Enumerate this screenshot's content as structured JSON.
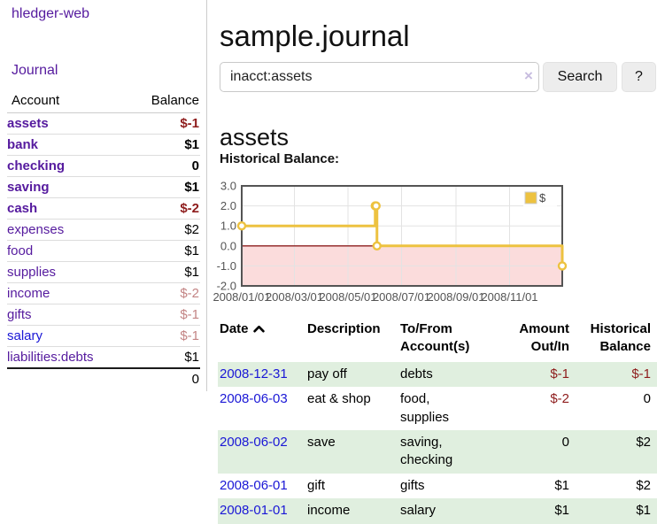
{
  "app": {
    "brand": "hledger-web",
    "nav_journal": "Journal"
  },
  "sidebar": {
    "accounts_header": {
      "account": "Account",
      "balance": "Balance"
    },
    "accounts": [
      {
        "name": "assets",
        "depth": 1,
        "balance": "$-1",
        "bold": true,
        "unvisited": false
      },
      {
        "name": "bank",
        "depth": 2,
        "balance": "$1",
        "bold": true,
        "unvisited": false
      },
      {
        "name": "checking",
        "depth": 3,
        "balance": "0",
        "bold": true,
        "unvisited": false
      },
      {
        "name": "saving",
        "depth": 3,
        "balance": "$1",
        "bold": true,
        "unvisited": false
      },
      {
        "name": "cash",
        "depth": 2,
        "balance": "$-2",
        "bold": true,
        "unvisited": false
      },
      {
        "name": "expenses",
        "depth": 1,
        "balance": "$2",
        "bold": false,
        "unvisited": false
      },
      {
        "name": "food",
        "depth": 2,
        "balance": "$1",
        "bold": false,
        "unvisited": false
      },
      {
        "name": "supplies",
        "depth": 2,
        "balance": "$1",
        "bold": false,
        "unvisited": false
      },
      {
        "name": "income",
        "depth": 1,
        "balance": "$-2",
        "bold": false,
        "unvisited": false
      },
      {
        "name": "gifts",
        "depth": 2,
        "balance": "$-1",
        "bold": false,
        "unvisited": false
      },
      {
        "name": "salary",
        "depth": 2,
        "balance": "$-1",
        "bold": false,
        "unvisited": true
      },
      {
        "name": "liabilities:debts",
        "depth": 1,
        "balance": "$1",
        "bold": false,
        "unvisited": false
      }
    ],
    "total": "0"
  },
  "header": {
    "title": "sample.journal"
  },
  "search": {
    "value": "inacct:assets",
    "clear_icon": "×",
    "button": "Search",
    "help": "?"
  },
  "account_page": {
    "title": "assets",
    "chart_label": "Historical Balance:"
  },
  "chart_data": {
    "type": "line",
    "title": "Historical Balance:",
    "series": [
      {
        "name": "$",
        "color": "#edc240",
        "step": true,
        "points": [
          {
            "date": "2008-01-01",
            "value": 1
          },
          {
            "date": "2008-06-01",
            "value": 2
          },
          {
            "date": "2008-06-02",
            "value": 2
          },
          {
            "date": "2008-06-03",
            "value": 0
          },
          {
            "date": "2008-12-31",
            "value": -1
          }
        ]
      }
    ],
    "x_range": [
      "2008-01-01",
      "2008-12-31"
    ],
    "y_range": [
      -2,
      3
    ],
    "y_ticks": [
      {
        "v": 3,
        "label": "3.0"
      },
      {
        "v": 2,
        "label": "2.0"
      },
      {
        "v": 1,
        "label": "1.0"
      },
      {
        "v": 0,
        "label": "0.0"
      },
      {
        "v": -1,
        "label": "-1.0"
      },
      {
        "v": -2,
        "label": "-2.0"
      }
    ],
    "x_ticks": [
      {
        "date": "2008-01-01",
        "label": "2008/01/01"
      },
      {
        "date": "2008-03-01",
        "label": "2008/03/01"
      },
      {
        "date": "2008-05-01",
        "label": "2008/05/01"
      },
      {
        "date": "2008-07-01",
        "label": "2008/07/01"
      },
      {
        "date": "2008-09-01",
        "label": "2008/09/01"
      },
      {
        "date": "2008-11-01",
        "label": "2008/11/01"
      }
    ],
    "grid": true,
    "legend_position": "top-right",
    "negative_region_color": "#fbdcdc",
    "zero_line_color": "#8e2020",
    "grid_color": "#e3e3e3",
    "border_color": "#545454",
    "tick_label_color": "#545454"
  },
  "register": {
    "columns": [
      {
        "label": "Date",
        "sortable": true
      },
      {
        "label": "Description"
      },
      {
        "label": "To/From Account(s)"
      },
      {
        "label": "Amount Out/In"
      },
      {
        "label": "Historical Balance"
      }
    ],
    "rows": [
      {
        "date": "2008-12-31",
        "description": "pay off",
        "tofrom": "debts",
        "amount": "$-1",
        "historical": "$-1"
      },
      {
        "date": "2008-06-03",
        "description": "eat & shop",
        "tofrom": "food, supplies",
        "amount": "$-2",
        "historical": "0"
      },
      {
        "date": "2008-06-02",
        "description": "save",
        "tofrom": "saving, checking",
        "amount": "0",
        "historical": "$2"
      },
      {
        "date": "2008-06-01",
        "description": "gift",
        "tofrom": "gifts",
        "amount": "$1",
        "historical": "$2"
      },
      {
        "date": "2008-01-01",
        "description": "income",
        "tofrom": "salary",
        "amount": "$1",
        "historical": "$1"
      }
    ]
  }
}
